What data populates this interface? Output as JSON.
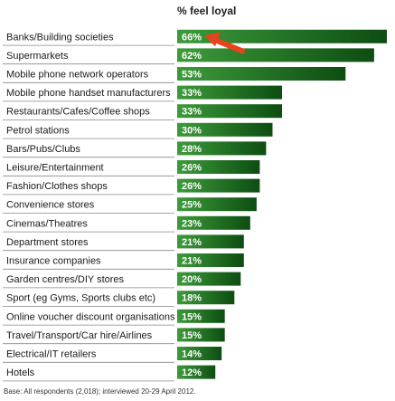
{
  "chart_data": {
    "type": "bar",
    "orientation": "horizontal",
    "title": "% feel loyal",
    "categories": [
      "Banks/Building societies",
      "Supermarkets",
      "Mobile phone network operators",
      "Mobile phone handset manufacturers",
      "Restaurants/Cafes/Coffee shops",
      "Petrol stations",
      "Bars/Pubs/Clubs",
      "Leisure/Entertainment",
      "Fashion/Clothes shops",
      "Convenience stores",
      "Cinemas/Theatres",
      "Department stores",
      "Insurance companies",
      "Garden centres/DIY stores",
      "Sport (eg Gyms, Sports clubs etc)",
      "Online voucher discount organisations",
      "Travel/Transport/Car hire/Airlines",
      "Electrical/IT retailers",
      "Hotels"
    ],
    "values": [
      66,
      62,
      53,
      33,
      33,
      30,
      28,
      26,
      26,
      25,
      23,
      21,
      21,
      20,
      18,
      15,
      15,
      14,
      12
    ],
    "value_labels": [
      "66%",
      "62%",
      "53%",
      "33%",
      "33%",
      "30%",
      "28%",
      "26%",
      "26%",
      "25%",
      "23%",
      "21%",
      "21%",
      "20%",
      "18%",
      "15%",
      "15%",
      "14%",
      "12%"
    ],
    "xlim": [
      0,
      66
    ],
    "grid": false,
    "bar_color_light": "#3d9b3a",
    "bar_color_dark": "#0d4d12",
    "separator_color": "#888888",
    "annotation": {
      "type": "arrow",
      "target": "Banks/Building societies",
      "color": "#e8431c"
    }
  },
  "footnote": "Base: All respondents (2,018); interviewed 20-29 April 2012."
}
